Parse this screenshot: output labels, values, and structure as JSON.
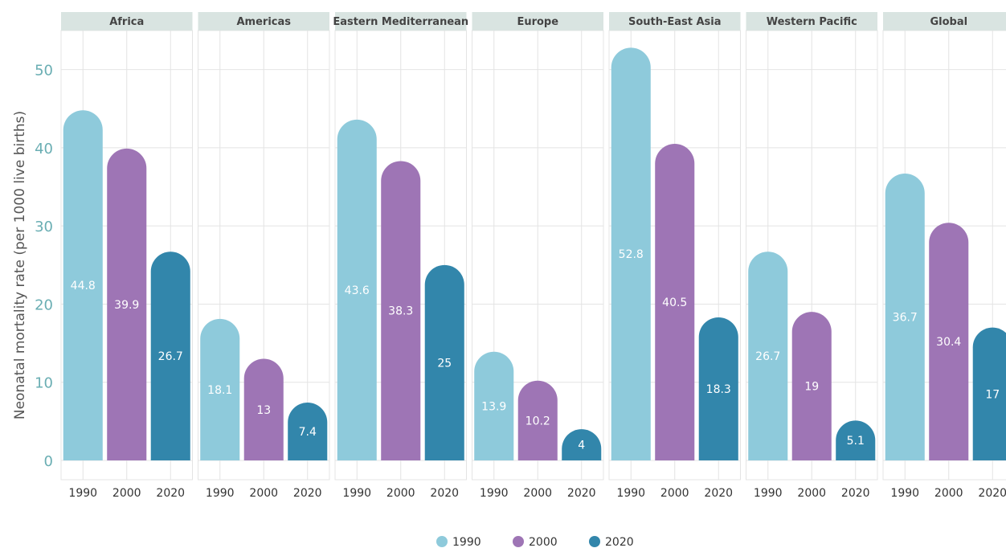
{
  "chart_data": {
    "type": "bar",
    "ylabel": "Neonatal mortality rate (per 1000 live births)",
    "xlabel": "",
    "ylim": [
      0,
      55
    ],
    "yticks": [
      0,
      10,
      20,
      30,
      40,
      50
    ],
    "grid": true,
    "legend_position": "bottom",
    "categories": [
      "1990",
      "2000",
      "2020"
    ],
    "colors": {
      "1990": "#8ecadb",
      "2000": "#9e75b5",
      "2020": "#3286ab"
    },
    "panels": [
      {
        "name": "Africa",
        "values": [
          44.8,
          39.9,
          26.7
        ]
      },
      {
        "name": "Americas",
        "values": [
          18.1,
          13,
          7.4
        ]
      },
      {
        "name": "Eastern Mediterranean",
        "values": [
          43.6,
          38.3,
          25
        ]
      },
      {
        "name": "Europe",
        "values": [
          13.9,
          10.2,
          4
        ]
      },
      {
        "name": "South-East Asia",
        "values": [
          52.8,
          40.5,
          18.3
        ]
      },
      {
        "name": "Western Pacific",
        "values": [
          26.7,
          19,
          5.1
        ]
      },
      {
        "name": "Global",
        "values": [
          36.7,
          30.4,
          17
        ]
      }
    ],
    "series": [
      {
        "name": "1990",
        "color": "#8ecadb"
      },
      {
        "name": "2000",
        "color": "#9e75b5"
      },
      {
        "name": "2020",
        "color": "#3286ab"
      }
    ]
  }
}
